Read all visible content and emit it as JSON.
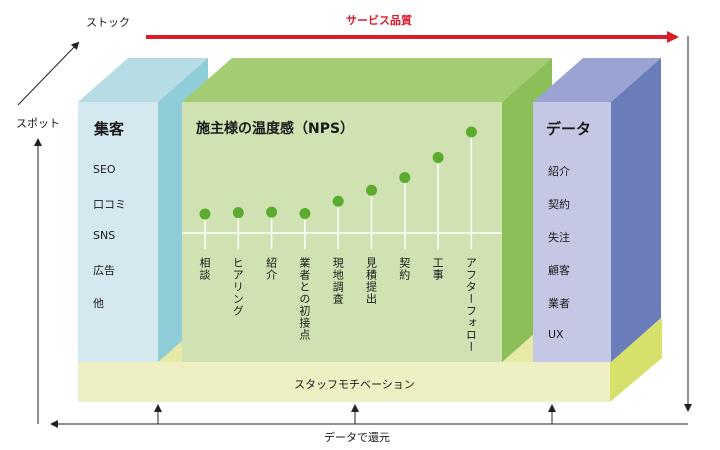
{
  "labels": {
    "stock": "ストック",
    "spot": "スポット",
    "service_quality": "サービス品質",
    "return_with_data": "データで還元",
    "staff_motivation": "スタッフモチベーション"
  },
  "left_box": {
    "title": "集客",
    "items": [
      "SEO",
      "口コミ",
      "SNS",
      "広告",
      "他"
    ]
  },
  "center_box": {
    "title": "施主様の温度感（NPS）",
    "steps": [
      {
        "label": "相談",
        "level": 1.0
      },
      {
        "label": "ヒアリング",
        "level": 1.15
      },
      {
        "label": "紹介",
        "level": 1.2
      },
      {
        "label": "業者との初接点",
        "level": 1.05
      },
      {
        "label": "現地調査",
        "level": 2.4
      },
      {
        "label": "見積提出",
        "level": 3.6
      },
      {
        "label": "契約",
        "level": 5.0
      },
      {
        "label": "工事",
        "level": 7.2
      },
      {
        "label": "アフターフォロー",
        "level": 10.0
      }
    ]
  },
  "right_box": {
    "title": "データ",
    "items": [
      "紹介",
      "契約",
      "失注",
      "顧客",
      "業者",
      "UX"
    ]
  },
  "colors": {
    "service_arrow": "#dd1a2a",
    "left_front": "#d3e9ef",
    "left_side": "#8fcdd8",
    "left_top": "#b6dce6",
    "center_front": "#d0e2b2",
    "center_top": "#a4cc72",
    "center_side": "#8cbf58",
    "dot": "#5aab2e",
    "right_front": "#c5c8e4",
    "right_side": "#6a7dba",
    "right_top": "#9aa3d2",
    "base_front": "#eef0c4",
    "base_side": "#d7e06a"
  }
}
